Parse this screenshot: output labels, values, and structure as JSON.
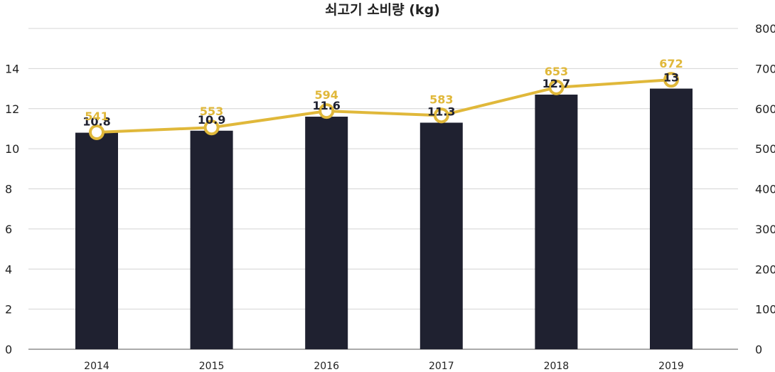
{
  "chart_data": {
    "type": "bar+line",
    "title": "쇠고기 소비량 (kg)",
    "categories": [
      "2014",
      "2015",
      "2016",
      "2017",
      "2018",
      "2019"
    ],
    "bar_series": {
      "axis": "left",
      "values": [
        10.8,
        10.9,
        11.6,
        11.3,
        12.7,
        13
      ],
      "labels": [
        "10.8",
        "10.9",
        "11.6",
        "11.3",
        "12.7",
        "13"
      ],
      "color": "#1f2130"
    },
    "line_series": {
      "axis": "right",
      "values": [
        541,
        553,
        594,
        583,
        653,
        672
      ],
      "labels": [
        "541",
        "553",
        "594",
        "583",
        "653",
        "672"
      ],
      "color": "#e0b83a"
    },
    "left_axis": {
      "ylim": [
        0,
        16
      ],
      "ticks": [
        0,
        2,
        4,
        6,
        8,
        10,
        12,
        14
      ],
      "tick_labels": [
        "0",
        "2",
        "4",
        "6",
        "8",
        "10",
        "12",
        "14"
      ]
    },
    "right_axis": {
      "ylim": [
        0,
        800
      ],
      "ticks": [
        0,
        100,
        200,
        300,
        400,
        500,
        600,
        700,
        800
      ],
      "tick_labels": [
        "0",
        "100",
        "200",
        "300",
        "400",
        "500",
        "600",
        "700",
        "800"
      ]
    },
    "grid": true,
    "legend": "none"
  }
}
